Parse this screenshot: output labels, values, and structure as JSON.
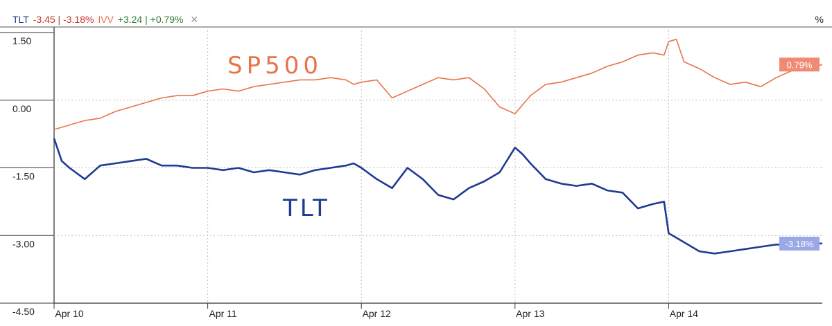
{
  "legend": {
    "series1_symbol": "TLT",
    "series1_change": "-3.45 | -3.18%",
    "series2_symbol": "IVV",
    "series2_change": "+3.24 | +0.79%",
    "close_glyph": "✕"
  },
  "unit_label": "%",
  "colors": {
    "tlt": "#1f3a93",
    "ivv": "#e8734a",
    "neg": "#c0392b",
    "pos": "#2e7d32"
  },
  "annotations": {
    "sp500": "SP500",
    "tlt": "TLT"
  },
  "chart_data": {
    "type": "line",
    "ylim": [
      -4.5,
      1.5
    ],
    "yticks": [
      1.5,
      0.0,
      -1.5,
      -3.0,
      -4.5
    ],
    "ytick_labels": [
      "1.50",
      "0.00",
      "-1.50",
      "-3.00",
      "-4.50"
    ],
    "xlim": [
      0,
      5
    ],
    "x_ticks": [
      0,
      1,
      2,
      3,
      4
    ],
    "x_tick_labels": [
      "Apr 10",
      "Apr 11",
      "Apr 12",
      "Apr 13",
      "Apr 14"
    ],
    "grid": true,
    "series": [
      {
        "name": "IVV",
        "end_label": "0.79%",
        "x": [
          0,
          0.1,
          0.2,
          0.3,
          0.4,
          0.5,
          0.6,
          0.7,
          0.8,
          0.9,
          1.0,
          1.1,
          1.2,
          1.3,
          1.4,
          1.5,
          1.6,
          1.7,
          1.8,
          1.9,
          1.95,
          2.0,
          2.1,
          2.2,
          2.3,
          2.4,
          2.5,
          2.6,
          2.7,
          2.8,
          2.9,
          3.0,
          3.1,
          3.2,
          3.3,
          3.4,
          3.5,
          3.6,
          3.7,
          3.8,
          3.9,
          3.97,
          4.0,
          4.05,
          4.1,
          4.2,
          4.3,
          4.4,
          4.5,
          4.6,
          4.7,
          4.8,
          4.9,
          5.0
        ],
        "values": [
          -0.65,
          -0.55,
          -0.45,
          -0.4,
          -0.25,
          -0.15,
          -0.05,
          0.05,
          0.1,
          0.1,
          0.2,
          0.25,
          0.2,
          0.3,
          0.35,
          0.4,
          0.45,
          0.45,
          0.5,
          0.45,
          0.35,
          0.4,
          0.45,
          0.05,
          0.2,
          0.35,
          0.5,
          0.45,
          0.5,
          0.25,
          -0.15,
          -0.3,
          0.1,
          0.35,
          0.4,
          0.5,
          0.6,
          0.75,
          0.85,
          1.0,
          1.05,
          1.0,
          1.3,
          1.35,
          0.85,
          0.7,
          0.5,
          0.35,
          0.4,
          0.3,
          0.5,
          0.65,
          0.7,
          0.79
        ]
      },
      {
        "name": "TLT",
        "end_label": "-3.18%",
        "x": [
          0,
          0.05,
          0.1,
          0.2,
          0.3,
          0.4,
          0.5,
          0.6,
          0.7,
          0.8,
          0.9,
          1.0,
          1.1,
          1.2,
          1.3,
          1.4,
          1.5,
          1.6,
          1.7,
          1.8,
          1.9,
          1.95,
          2.0,
          2.1,
          2.2,
          2.3,
          2.4,
          2.5,
          2.6,
          2.7,
          2.8,
          2.9,
          3.0,
          3.05,
          3.1,
          3.2,
          3.3,
          3.4,
          3.5,
          3.6,
          3.7,
          3.8,
          3.9,
          3.97,
          4.0,
          4.1,
          4.2,
          4.3,
          4.4,
          4.5,
          4.6,
          4.7,
          4.8,
          4.9,
          5.0
        ],
        "values": [
          -0.85,
          -1.35,
          -1.5,
          -1.75,
          -1.45,
          -1.4,
          -1.35,
          -1.3,
          -1.45,
          -1.45,
          -1.5,
          -1.5,
          -1.55,
          -1.5,
          -1.6,
          -1.55,
          -1.6,
          -1.65,
          -1.55,
          -1.5,
          -1.45,
          -1.4,
          -1.5,
          -1.75,
          -1.95,
          -1.5,
          -1.75,
          -2.1,
          -2.2,
          -1.95,
          -1.8,
          -1.6,
          -1.05,
          -1.2,
          -1.4,
          -1.75,
          -1.85,
          -1.9,
          -1.85,
          -2.0,
          -2.05,
          -2.4,
          -2.3,
          -2.25,
          -2.95,
          -3.15,
          -3.35,
          -3.4,
          -3.35,
          -3.3,
          -3.25,
          -3.2,
          -3.2,
          -3.15,
          -3.18
        ]
      }
    ]
  }
}
